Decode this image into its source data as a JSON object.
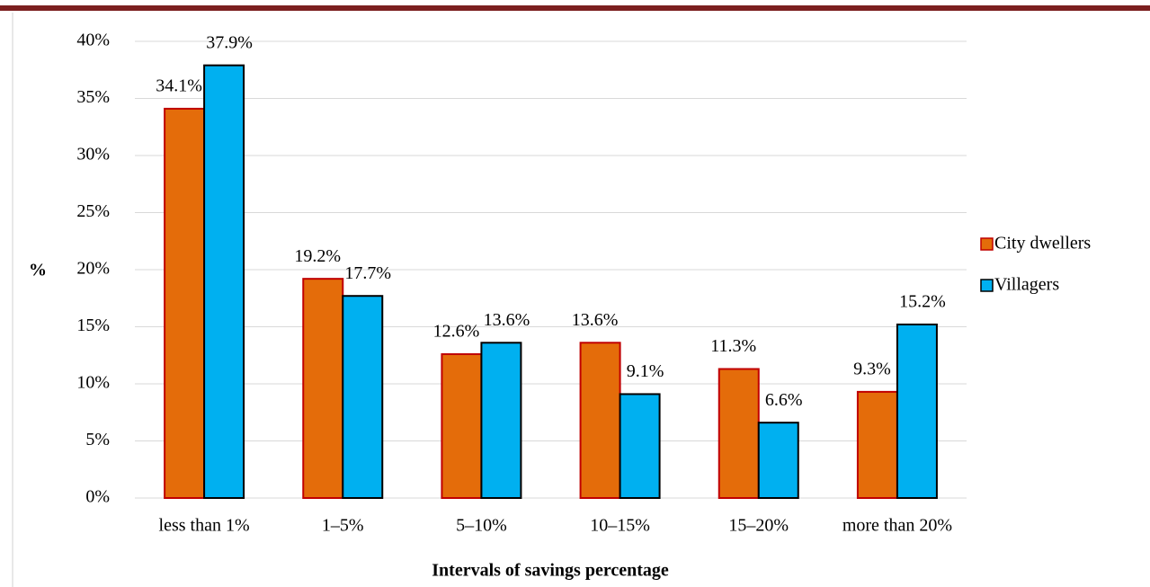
{
  "chart_data": {
    "type": "bar",
    "x_label": "Intervals of savings percentage",
    "y_label": "%",
    "categories": [
      "less than 1%",
      "1–5%",
      "5–10%",
      "10–15%",
      "15–20%",
      "more than 20%"
    ],
    "series": [
      {
        "name": "City dwellers",
        "color": "#e46c0a",
        "stroke": "#c00000",
        "values": [
          34.1,
          19.2,
          12.6,
          13.6,
          11.3,
          9.3
        ],
        "value_labels": [
          "34.1%",
          "19.2%",
          "12.6%",
          "13.6%",
          "11.3%",
          "9.3%"
        ]
      },
      {
        "name": "Villagers",
        "color": "#00b0f0",
        "stroke": "#000000",
        "values": [
          37.9,
          17.7,
          13.6,
          9.1,
          6.6,
          15.2
        ],
        "value_labels": [
          "37.9%",
          "17.7%",
          "13.6%",
          "9.1%",
          "6.6%",
          "15.2%"
        ]
      }
    ],
    "ylim": [
      0,
      40
    ],
    "yticks": [
      {
        "value": 0,
        "label": "0%"
      },
      {
        "value": 5,
        "label": "5%"
      },
      {
        "value": 10,
        "label": "10%"
      },
      {
        "value": 15,
        "label": "15%"
      },
      {
        "value": 20,
        "label": "20%"
      },
      {
        "value": 25,
        "label": "25%"
      },
      {
        "value": 30,
        "label": "30%"
      },
      {
        "value": 35,
        "label": "35%"
      },
      {
        "value": 40,
        "label": "40%"
      }
    ],
    "grid": true,
    "legend": "right"
  }
}
